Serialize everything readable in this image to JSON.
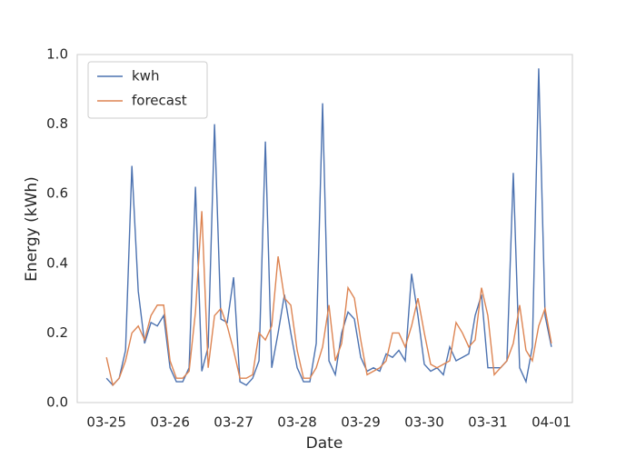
{
  "chart_data": {
    "type": "line",
    "xlabel": "Date",
    "ylabel": "Energy (kWh)",
    "x": [
      0,
      0.1,
      0.2,
      0.3,
      0.4,
      0.5,
      0.6,
      0.7,
      0.8,
      0.9,
      1,
      1.1,
      1.2,
      1.3,
      1.4,
      1.5,
      1.6,
      1.7,
      1.8,
      1.9,
      2,
      2.1,
      2.2,
      2.3,
      2.4,
      2.5,
      2.6,
      2.7,
      2.8,
      2.9,
      3,
      3.1,
      3.2,
      3.3,
      3.4,
      3.5,
      3.6,
      3.7,
      3.8,
      3.9,
      4,
      4.1,
      4.2,
      4.3,
      4.4,
      4.5,
      4.6,
      4.7,
      4.8,
      4.9,
      5,
      5.1,
      5.2,
      5.3,
      5.4,
      5.5,
      5.6,
      5.7,
      5.8,
      5.9,
      6,
      6.1,
      6.2,
      6.3,
      6.4,
      6.5,
      6.6,
      6.7,
      6.8,
      6.9,
      7
    ],
    "series": [
      {
        "name": "kwh",
        "color": "#4c72b0",
        "values": [
          0.07,
          0.05,
          0.07,
          0.15,
          0.68,
          0.32,
          0.17,
          0.23,
          0.22,
          0.25,
          0.1,
          0.06,
          0.06,
          0.1,
          0.62,
          0.09,
          0.16,
          0.8,
          0.24,
          0.23,
          0.36,
          0.06,
          0.05,
          0.07,
          0.12,
          0.75,
          0.1,
          0.2,
          0.31,
          0.2,
          0.1,
          0.06,
          0.06,
          0.17,
          0.86,
          0.12,
          0.08,
          0.2,
          0.26,
          0.24,
          0.13,
          0.09,
          0.1,
          0.09,
          0.14,
          0.13,
          0.15,
          0.12,
          0.37,
          0.25,
          0.11,
          0.09,
          0.1,
          0.08,
          0.16,
          0.12,
          0.13,
          0.14,
          0.25,
          0.31,
          0.1,
          0.1,
          0.1,
          0.12,
          0.66,
          0.1,
          0.06,
          0.16,
          0.96,
          0.25,
          0.16
        ]
      },
      {
        "name": "forecast",
        "color": "#dd8452",
        "values": [
          0.13,
          0.05,
          0.07,
          0.12,
          0.2,
          0.22,
          0.18,
          0.25,
          0.28,
          0.28,
          0.12,
          0.07,
          0.07,
          0.09,
          0.26,
          0.55,
          0.1,
          0.25,
          0.27,
          0.22,
          0.15,
          0.07,
          0.07,
          0.08,
          0.2,
          0.18,
          0.22,
          0.42,
          0.3,
          0.28,
          0.15,
          0.07,
          0.07,
          0.1,
          0.16,
          0.28,
          0.12,
          0.17,
          0.33,
          0.3,
          0.18,
          0.08,
          0.09,
          0.1,
          0.12,
          0.2,
          0.2,
          0.16,
          0.22,
          0.3,
          0.2,
          0.11,
          0.1,
          0.11,
          0.12,
          0.23,
          0.2,
          0.16,
          0.18,
          0.33,
          0.25,
          0.08,
          0.1,
          0.12,
          0.17,
          0.28,
          0.15,
          0.12,
          0.22,
          0.27,
          0.17
        ]
      }
    ],
    "xlim": [
      -0.46,
      7.33
    ],
    "ylim": [
      0,
      1
    ],
    "xticks": [
      {
        "value": 0,
        "label": "03-25"
      },
      {
        "value": 1,
        "label": "03-26"
      },
      {
        "value": 2,
        "label": "03-27"
      },
      {
        "value": 3,
        "label": "03-28"
      },
      {
        "value": 4,
        "label": "03-29"
      },
      {
        "value": 5,
        "label": "03-30"
      },
      {
        "value": 6,
        "label": "03-31"
      },
      {
        "value": 7,
        "label": "04-01"
      }
    ],
    "yticks": [
      {
        "value": 0,
        "label": "0.0"
      },
      0.2,
      0.4,
      0.6,
      0.8,
      {
        "value": 1,
        "label": "1.0"
      }
    ],
    "grid": false,
    "legend": "upper-left"
  }
}
